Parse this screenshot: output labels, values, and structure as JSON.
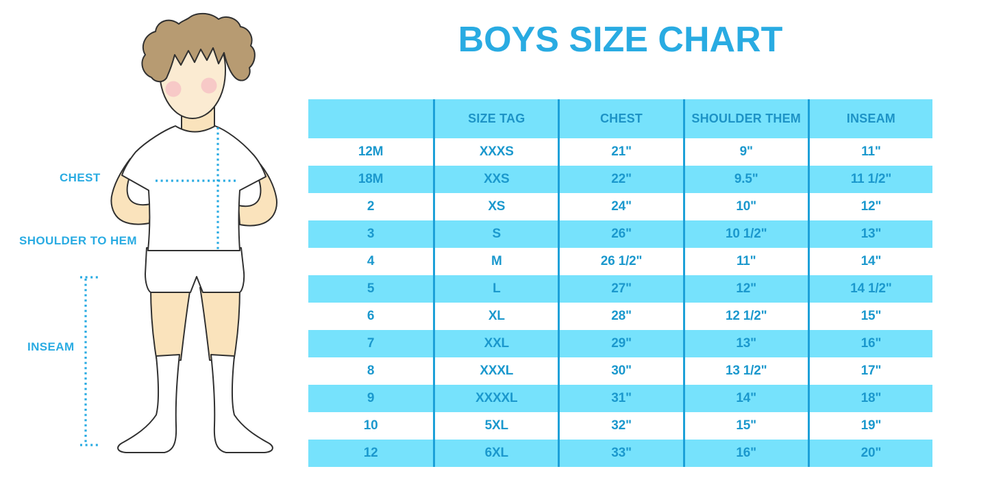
{
  "title": "BOYS SIZE CHART",
  "figure": {
    "chest_label": "CHEST",
    "shoulder_to_hem_label": "SHOULDER TO HEM",
    "inseam_label": "INSEAM"
  },
  "colors": {
    "accent_blue": "#29ABE2",
    "table_band_cyan": "#76E2FC",
    "table_text_blue": "#1B98CD",
    "divider_blue": "#1CA0D8",
    "hair_brown": "#B79B72",
    "skin": "#FAE3BC",
    "face_skin": "#FBEBD2",
    "blush_pink": "#F4B7C2"
  },
  "chart_data": {
    "type": "table",
    "title": "BOYS SIZE CHART",
    "columns": [
      "",
      "SIZE TAG",
      "CHEST",
      "SHOULDER THEM",
      "INSEAM"
    ],
    "rows": [
      [
        "12M",
        "XXXS",
        "21\"",
        "9\"",
        "11\""
      ],
      [
        "18M",
        "XXS",
        "22\"",
        "9.5\"",
        "11 1/2\""
      ],
      [
        "2",
        "XS",
        "24\"",
        "10\"",
        "12\""
      ],
      [
        "3",
        "S",
        "26\"",
        "10 1/2\"",
        "13\""
      ],
      [
        "4",
        "M",
        "26 1/2\"",
        "11\"",
        "14\""
      ],
      [
        "5",
        "L",
        "27\"",
        "12\"",
        "14 1/2\""
      ],
      [
        "6",
        "XL",
        "28\"",
        "12 1/2\"",
        "15\""
      ],
      [
        "7",
        "XXL",
        "29\"",
        "13\"",
        "16\""
      ],
      [
        "8",
        "XXXL",
        "30\"",
        "13 1/2\"",
        "17\""
      ],
      [
        "9",
        "XXXXL",
        "31\"",
        "14\"",
        "18\""
      ],
      [
        "10",
        "5XL",
        "32\"",
        "15\"",
        "19\""
      ],
      [
        "12",
        "6XL",
        "33\"",
        "16\"",
        "20\""
      ]
    ],
    "layout": {
      "stripes": "header cyan, data rows alternate white/cyan starting white",
      "measurement_annotations": [
        "CHEST",
        "SHOULDER TO HEM",
        "INSEAM"
      ]
    }
  }
}
